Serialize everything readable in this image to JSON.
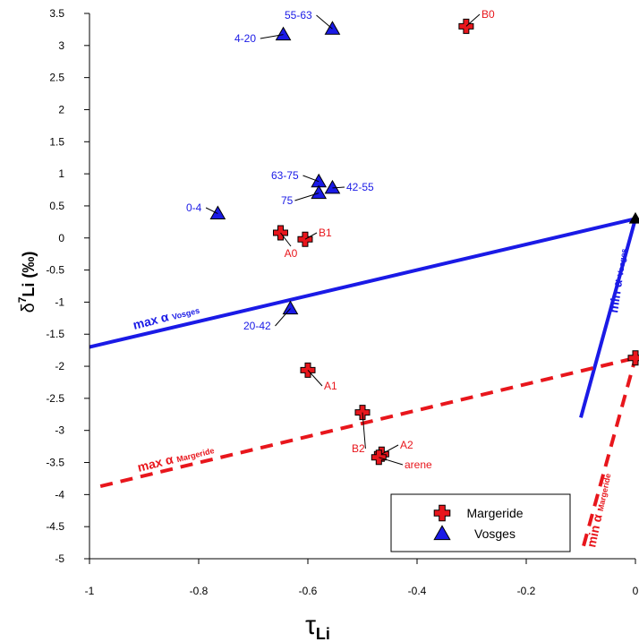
{
  "chart_data": {
    "type": "scatter",
    "xlabel": "τLi",
    "xlabel_main": "τ",
    "xlabel_sub": "Li",
    "ylabel": "δ7Li (‰)",
    "ylabel_delta": "δ",
    "ylabel_sup": "7",
    "ylabel_rest": "Li (‰)",
    "xlim": [
      -1,
      0
    ],
    "ylim": [
      -5,
      3.5
    ],
    "x_ticks": [
      -1,
      -0.8,
      -0.6,
      -0.4,
      -0.2,
      0
    ],
    "x_tick_labels": [
      "-1",
      "-0.8",
      "-0.6",
      "-0.4",
      "-0.2",
      "0"
    ],
    "y_ticks": [
      -5,
      -4.5,
      -4,
      -3.5,
      -3,
      -2.5,
      -2,
      -1.5,
      -1,
      -0.5,
      0,
      0.5,
      1,
      1.5,
      2,
      2.5,
      3,
      3.5
    ],
    "y_tick_labels": [
      "-5",
      "-4.5",
      "-4",
      "-3.5",
      "-3",
      "-2.5",
      "-2",
      "-1.5",
      "-1",
      "-0.5",
      "0",
      "0.5",
      "1",
      "1.5",
      "2",
      "2.5",
      "3",
      "3.5"
    ],
    "grid": false,
    "legend_position": "bottom-right",
    "series": [
      {
        "name": "Margeride",
        "marker": "cross",
        "color": "#e8161c",
        "points": [
          {
            "x": -0.31,
            "y": 3.3,
            "label": "B0"
          },
          {
            "x": -0.65,
            "y": 0.08,
            "label": "A0"
          },
          {
            "x": -0.605,
            "y": -0.02,
            "label": "B1"
          },
          {
            "x": -0.6,
            "y": -2.06,
            "label": "A1"
          },
          {
            "x": -0.5,
            "y": -2.72,
            "label": "B2"
          },
          {
            "x": -0.465,
            "y": -3.37,
            "label": "A2"
          },
          {
            "x": -0.47,
            "y": -3.42,
            "label": "arene"
          },
          {
            "x": 0,
            "y": -1.87,
            "label": ""
          }
        ]
      },
      {
        "name": "Vosges",
        "marker": "triangle",
        "color": "#1a1ae6",
        "points": [
          {
            "x": -0.645,
            "y": 3.17,
            "label": "4-20"
          },
          {
            "x": -0.555,
            "y": 3.26,
            "label": "55-63"
          },
          {
            "x": -0.58,
            "y": 0.88,
            "label": "63-75"
          },
          {
            "x": -0.58,
            "y": 0.7,
            "label": "75"
          },
          {
            "x": -0.555,
            "y": 0.78,
            "label": "42-55"
          },
          {
            "x": -0.765,
            "y": 0.38,
            "label": "0-4"
          },
          {
            "x": -0.632,
            "y": -1.1,
            "label": "20-42"
          }
        ]
      }
    ],
    "extra_points": [
      {
        "x": 0,
        "y": 0.3,
        "marker": "triangle",
        "color": "#000000"
      }
    ],
    "lines": [
      {
        "name": "max α Vosges",
        "label_main": "max α",
        "label_sub": "Vosges",
        "style": "solid",
        "color": "#1a1ae6",
        "points": [
          [
            -1,
            -1.7
          ],
          [
            0,
            0.3
          ]
        ]
      },
      {
        "name": "min α Vosges",
        "label_main": "min α",
        "label_sub": "Vosges",
        "style": "solid",
        "color": "#1a1ae6",
        "points": [
          [
            -0.1,
            -2.8
          ],
          [
            0,
            0.3
          ]
        ]
      },
      {
        "name": "max α Margeride",
        "label_main": "max α",
        "label_sub": "Margeride",
        "style": "dashed",
        "color": "#e8161c",
        "points": [
          [
            -0.98,
            -3.87
          ],
          [
            0,
            -1.87
          ]
        ]
      },
      {
        "name": "min α Margeride",
        "label_main": "min α",
        "label_sub": "Margeride",
        "style": "dashed",
        "color": "#e8161c",
        "points": [
          [
            -0.095,
            -4.8
          ],
          [
            0,
            -1.87
          ]
        ]
      }
    ]
  }
}
